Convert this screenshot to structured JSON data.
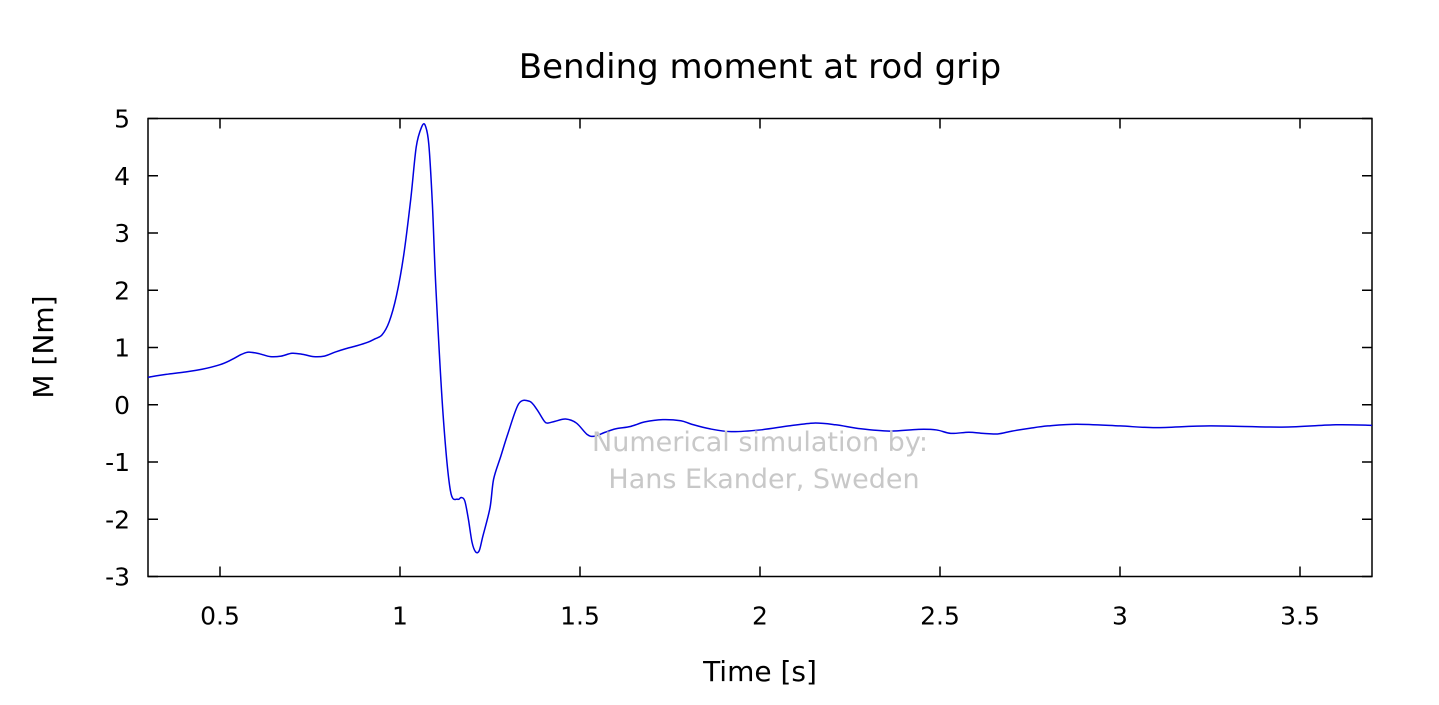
{
  "chart_data": {
    "type": "line",
    "title": "Bending moment at rod grip",
    "xlabel": "Time [s]",
    "ylabel": "M [Nm]",
    "xlim": [
      0.3,
      3.7
    ],
    "ylim": [
      -3,
      5
    ],
    "xticks": [
      0.5,
      1,
      1.5,
      2,
      2.5,
      3,
      3.5
    ],
    "xtick_labels": [
      "0.5",
      "1",
      "1.5",
      "2",
      "2.5",
      "3",
      "3.5"
    ],
    "yticks": [
      -3,
      -2,
      -1,
      0,
      1,
      2,
      3,
      4,
      5
    ],
    "ytick_labels": [
      "-3",
      "-2",
      "-1",
      "0",
      "1",
      "2",
      "3",
      "4",
      "5"
    ],
    "grid": false,
    "legend": "none",
    "annotations": [
      {
        "line1": "Numerical simulation by:",
        "line2": "Hans Ekander, Sweden"
      }
    ],
    "series": [
      {
        "color": "#0000e0",
        "x": [
          0.3,
          0.35,
          0.4,
          0.45,
          0.5,
          0.53,
          0.56,
          0.58,
          0.61,
          0.64,
          0.67,
          0.7,
          0.73,
          0.76,
          0.79,
          0.82,
          0.85,
          0.88,
          0.91,
          0.93,
          0.95,
          0.97,
          0.99,
          1.01,
          1.03,
          1.045,
          1.06,
          1.07,
          1.08,
          1.09,
          1.1,
          1.12,
          1.14,
          1.16,
          1.17,
          1.18,
          1.19,
          1.2,
          1.21,
          1.22,
          1.23,
          1.25,
          1.26,
          1.28,
          1.3,
          1.33,
          1.36,
          1.38,
          1.4,
          1.41,
          1.43,
          1.46,
          1.49,
          1.52,
          1.54,
          1.57,
          1.6,
          1.64,
          1.68,
          1.73,
          1.78,
          1.81,
          1.86,
          1.92,
          2.0,
          2.08,
          2.15,
          2.21,
          2.28,
          2.36,
          2.44,
          2.49,
          2.53,
          2.58,
          2.62,
          2.66,
          2.7,
          2.75,
          2.8,
          2.88,
          3.0,
          3.1,
          3.25,
          3.45,
          3.6,
          3.7
        ],
        "y": [
          0.48,
          0.53,
          0.57,
          0.62,
          0.7,
          0.78,
          0.88,
          0.92,
          0.89,
          0.84,
          0.85,
          0.9,
          0.88,
          0.84,
          0.85,
          0.92,
          0.98,
          1.03,
          1.09,
          1.15,
          1.22,
          1.45,
          1.9,
          2.6,
          3.6,
          4.5,
          4.85,
          4.88,
          4.55,
          3.5,
          2.0,
          -0.2,
          -1.5,
          -1.65,
          -1.62,
          -1.68,
          -2.0,
          -2.4,
          -2.57,
          -2.55,
          -2.3,
          -1.8,
          -1.3,
          -0.9,
          -0.5,
          0.02,
          0.06,
          -0.08,
          -0.28,
          -0.32,
          -0.29,
          -0.25,
          -0.32,
          -0.52,
          -0.55,
          -0.48,
          -0.42,
          -0.38,
          -0.3,
          -0.26,
          -0.28,
          -0.34,
          -0.42,
          -0.47,
          -0.44,
          -0.37,
          -0.32,
          -0.35,
          -0.42,
          -0.46,
          -0.43,
          -0.44,
          -0.5,
          -0.48,
          -0.5,
          -0.51,
          -0.46,
          -0.41,
          -0.37,
          -0.34,
          -0.37,
          -0.4,
          -0.37,
          -0.39,
          -0.35,
          -0.36
        ]
      }
    ]
  }
}
